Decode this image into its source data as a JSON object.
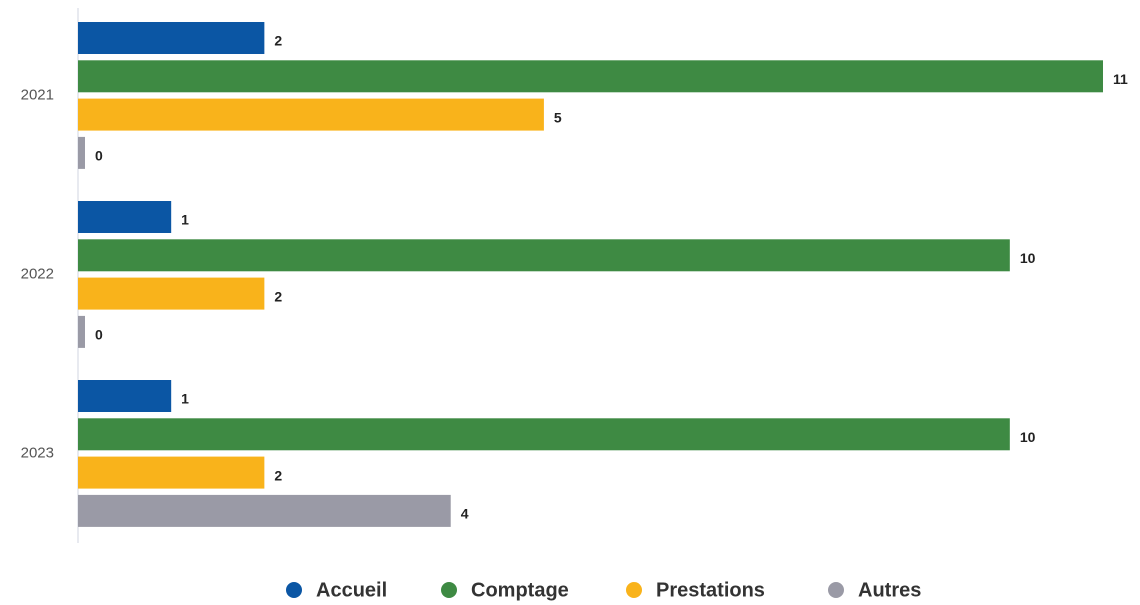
{
  "chart_data": {
    "type": "bar",
    "orientation": "horizontal",
    "categories": [
      "2021",
      "2022",
      "2023"
    ],
    "series": [
      {
        "name": "Accueil",
        "color": "#0b56a4",
        "values": [
          2,
          1,
          1
        ]
      },
      {
        "name": "Comptage",
        "color": "#3e8a43",
        "values": [
          11,
          10,
          10
        ]
      },
      {
        "name": "Prestations",
        "color": "#f9b31b",
        "values": [
          5,
          2,
          2
        ]
      },
      {
        "name": "Autres",
        "color": "#9a9aa6",
        "values": [
          0,
          0,
          4
        ]
      }
    ],
    "xlim": [
      0,
      11
    ],
    "legend": "bottom"
  }
}
